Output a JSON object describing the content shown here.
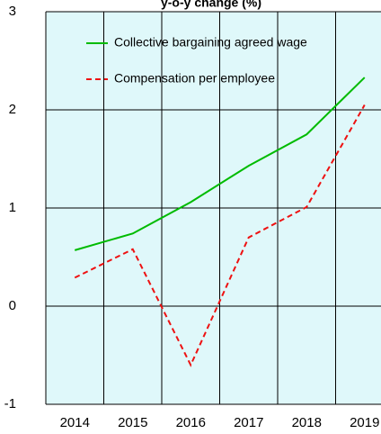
{
  "chart_data": {
    "type": "line",
    "title": "y-o-y change (%)",
    "categories": [
      "2014",
      "2015",
      "2016",
      "2017",
      "2018",
      "2019"
    ],
    "series": [
      {
        "name": "Collective bargaining agreed wage",
        "color": "#00bb00",
        "dash": false,
        "values": [
          0.57,
          0.74,
          1.06,
          1.43,
          1.75,
          2.33
        ]
      },
      {
        "name": "Compensation per employee",
        "color": "#ee1111",
        "dash": true,
        "values": [
          0.29,
          0.58,
          -0.6,
          0.7,
          1.01,
          2.05
        ]
      }
    ],
    "ylim": [
      -1,
      3
    ],
    "yticks": [
      -1,
      0,
      1,
      2,
      3
    ],
    "grid": true,
    "background": "#dff8fa"
  }
}
